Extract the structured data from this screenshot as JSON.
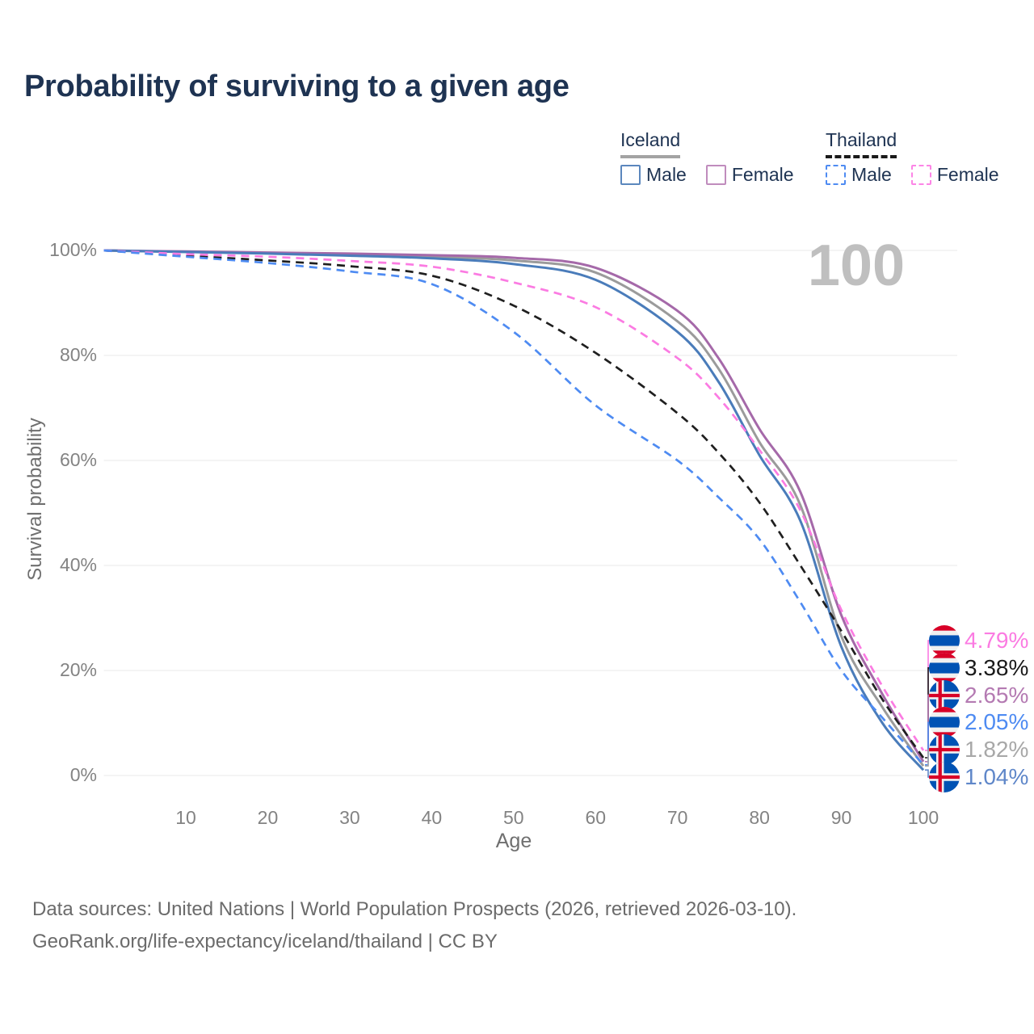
{
  "title": "Probability of surviving to a given age",
  "watermark": "100",
  "legend": {
    "groups": [
      {
        "title": "Iceland",
        "line_style": "solid",
        "underline_color": "#a3a3a3",
        "items": [
          {
            "label": "Male",
            "color": "#5b87bd",
            "dashed": false
          },
          {
            "label": "Female",
            "color": "#c08cbd",
            "dashed": false
          }
        ]
      },
      {
        "title": "Thailand",
        "line_style": "dashed",
        "underline_color": "#1a1a1a",
        "items": [
          {
            "label": "Male",
            "color": "#4e8bf2",
            "dashed": true
          },
          {
            "label": "Female",
            "color": "#fc85e6",
            "dashed": true
          }
        ]
      }
    ]
  },
  "chart_data": {
    "type": "line",
    "title": "Probability of surviving to a given age",
    "xlabel": "Age",
    "ylabel": "Survival probability",
    "xlim": [
      0,
      104
    ],
    "ylim": [
      0,
      100
    ],
    "grid": "horizontal",
    "legend_position": "top-right",
    "x_ticks": [
      10,
      20,
      30,
      40,
      50,
      60,
      70,
      80,
      90,
      100
    ],
    "y_ticks": [
      "0%",
      "20%",
      "40%",
      "60%",
      "80%",
      "100%"
    ],
    "x": [
      0,
      10,
      20,
      30,
      40,
      50,
      60,
      70,
      75,
      80,
      85,
      90,
      95,
      100
    ],
    "series": [
      {
        "name": "Iceland (both sexes)",
        "country": "iceland",
        "color": "#9b9b9b",
        "dash": "solid",
        "values": [
          100,
          99.7,
          99.5,
          99.2,
          98.8,
          98.1,
          95.8,
          86.5,
          77.5,
          63.5,
          51.5,
          26.5,
          13.0,
          1.82
        ],
        "end_label": "1.82%"
      },
      {
        "name": "Iceland Female",
        "country": "iceland",
        "color": "#a569a9",
        "dash": "solid",
        "values": [
          100,
          99.8,
          99.6,
          99.4,
          99.1,
          98.6,
          96.7,
          88.5,
          79.5,
          66.0,
          54.0,
          30.5,
          15.5,
          2.65
        ],
        "end_label": "2.65%"
      },
      {
        "name": "Iceland Male",
        "country": "iceland",
        "color": "#4a7cba",
        "dash": "solid",
        "values": [
          100,
          99.7,
          99.4,
          99.0,
          98.5,
          97.4,
          94.4,
          84.5,
          75.0,
          61.0,
          48.5,
          24.5,
          10.0,
          1.04
        ],
        "end_label": "1.04%"
      },
      {
        "name": "Thailand (both sexes)",
        "country": "thailand",
        "color": "#1f1f1f",
        "dash": "dashed",
        "values": [
          100,
          99.0,
          98.1,
          97.0,
          95.2,
          89.5,
          80.5,
          69.0,
          61.5,
          52.0,
          40.0,
          27.5,
          14.5,
          3.38
        ],
        "end_label": "3.38%"
      },
      {
        "name": "Thailand Female",
        "country": "thailand",
        "color": "#fb7be2",
        "dash": "dashed",
        "values": [
          100,
          99.3,
          98.8,
          98.0,
          96.9,
          93.9,
          89.2,
          79.5,
          72.0,
          62.0,
          50.5,
          31.5,
          17.0,
          4.79
        ],
        "end_label": "4.79%"
      },
      {
        "name": "Thailand Male",
        "country": "thailand",
        "color": "#4e8bf2",
        "dash": "dashed",
        "values": [
          100,
          98.8,
          97.6,
          96.0,
          93.6,
          84.5,
          70.5,
          60.0,
          53.0,
          45.0,
          33.0,
          20.0,
          11.0,
          2.05
        ],
        "end_label": "2.05%"
      }
    ]
  },
  "end_labels": [
    {
      "country": "thailand",
      "value": "4.79%",
      "color": "#fb7be2"
    },
    {
      "country": "thailand",
      "value": "3.38%",
      "color": "#1a1a1a"
    },
    {
      "country": "iceland",
      "value": "2.65%",
      "color": "#b47ab2"
    },
    {
      "country": "thailand",
      "value": "2.05%",
      "color": "#4e8bf2"
    },
    {
      "country": "iceland",
      "value": "1.82%",
      "color": "#a8a8a8"
    },
    {
      "country": "iceland",
      "value": "1.04%",
      "color": "#5f87c9"
    }
  ],
  "footer": {
    "line1": "Data sources: United Nations | World Population Prospects (2026, retrieved 2026-03-10).",
    "line2": "GeoRank.org/life-expectancy/iceland/thailand | CC BY"
  }
}
